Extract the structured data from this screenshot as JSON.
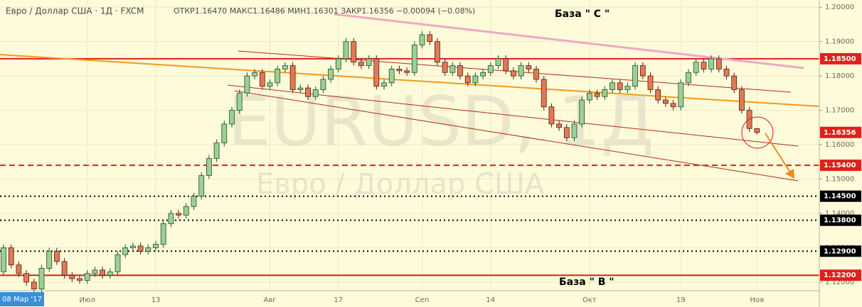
{
  "chart_data": {
    "type": "candlestick",
    "header_symbol": "Евро / Доллар США · 1Д · FXCM",
    "header_stats": "ОТКР1.16470 МАКС1.16486 МИН1.16301 ЗАКР1.16356 −0.00094 (−0.08%)",
    "watermark": "EURUSD, 1Д",
    "watermark_sub": "Евро / Доллар США",
    "annotations": [
      "База \" С \"",
      "База \" В \""
    ],
    "crosshair_date": "08 Мар '17",
    "categories": [
      null,
      null,
      null,
      null,
      null,
      null,
      null,
      null,
      null,
      null,
      null,
      "Июл",
      null,
      null,
      null,
      null,
      null,
      null,
      null,
      null,
      "13",
      null,
      null,
      null,
      null,
      null,
      null,
      null,
      null,
      null,
      null,
      null,
      null,
      null,
      null,
      "Авг",
      null,
      null,
      null,
      null,
      null,
      null,
      null,
      null,
      "17",
      null,
      null,
      null,
      null,
      null,
      null,
      null,
      null,
      null,
      null,
      "Сеп",
      null,
      null,
      null,
      null,
      null,
      null,
      null,
      null,
      "14",
      null,
      null,
      null,
      null,
      null,
      null,
      null,
      null,
      null,
      null,
      null,
      null,
      "Окт",
      null,
      null,
      null,
      null,
      null,
      null,
      null,
      null,
      null,
      null,
      null,
      "19",
      null,
      null,
      null,
      null,
      null,
      null,
      null,
      null,
      null,
      "Ноя"
    ],
    "open": [
      1.123,
      1.13,
      1.125,
      1.1225,
      1.12,
      1.118,
      1.124,
      1.129,
      1.126,
      1.122,
      1.121,
      1.1205,
      1.1225,
      1.1235,
      1.122,
      1.123,
      1.128,
      1.13,
      1.1305,
      1.129,
      1.13,
      1.131,
      1.137,
      1.14,
      1.1395,
      1.142,
      1.145,
      1.151,
      1.156,
      1.1605,
      1.166,
      1.17,
      1.175,
      1.18,
      1.181,
      1.177,
      1.178,
      1.182,
      1.183,
      1.176,
      1.1765,
      1.174,
      1.176,
      1.179,
      1.182,
      1.185,
      1.19,
      1.184,
      1.183,
      1.185,
      1.177,
      1.178,
      1.182,
      1.1815,
      1.181,
      1.189,
      1.192,
      1.19,
      1.184,
      1.181,
      1.183,
      1.18,
      1.178,
      1.18,
      1.181,
      1.183,
      1.185,
      1.1815,
      1.18,
      1.183,
      1.182,
      1.179,
      1.171,
      1.166,
      1.165,
      1.162,
      1.166,
      1.173,
      1.175,
      1.174,
      1.176,
      1.178,
      1.176,
      1.177,
      1.183,
      1.18,
      1.176,
      1.173,
      1.172,
      1.171,
      1.178,
      1.181,
      1.184,
      1.182,
      1.185,
      1.182,
      1.18,
      1.176,
      1.17,
      1.1647
    ],
    "high": [
      1.131,
      1.131,
      1.126,
      1.1235,
      1.121,
      1.125,
      1.13,
      1.13,
      1.127,
      1.123,
      1.122,
      1.1235,
      1.1245,
      1.1245,
      1.124,
      1.129,
      1.131,
      1.1315,
      1.1315,
      1.131,
      1.132,
      1.138,
      1.141,
      1.141,
      1.143,
      1.146,
      1.152,
      1.157,
      1.1615,
      1.167,
      1.171,
      1.176,
      1.181,
      1.182,
      1.182,
      1.179,
      1.183,
      1.184,
      1.184,
      1.1775,
      1.1775,
      1.177,
      1.18,
      1.183,
      1.186,
      1.191,
      1.191,
      1.185,
      1.186,
      1.186,
      1.179,
      1.183,
      1.183,
      1.1825,
      1.19,
      1.193,
      1.193,
      1.191,
      1.185,
      1.184,
      1.184,
      1.181,
      1.181,
      1.182,
      1.184,
      1.186,
      1.186,
      1.1825,
      1.184,
      1.184,
      1.183,
      1.18,
      1.172,
      1.167,
      1.166,
      1.167,
      1.174,
      1.176,
      1.176,
      1.177,
      1.179,
      1.179,
      1.178,
      1.184,
      1.184,
      1.181,
      1.177,
      1.174,
      1.173,
      1.179,
      1.182,
      1.185,
      1.185,
      1.186,
      1.186,
      1.183,
      1.181,
      1.177,
      1.171,
      1.16486
    ],
    "low": [
      1.122,
      1.124,
      1.1215,
      1.119,
      1.117,
      1.117,
      1.123,
      1.125,
      1.121,
      1.12,
      1.1195,
      1.1195,
      1.1215,
      1.121,
      1.121,
      1.122,
      1.127,
      1.129,
      1.128,
      1.128,
      1.129,
      1.13,
      1.136,
      1.1385,
      1.1385,
      1.141,
      1.144,
      1.15,
      1.155,
      1.1595,
      1.165,
      1.169,
      1.174,
      1.179,
      1.176,
      1.176,
      1.177,
      1.181,
      1.175,
      1.175,
      1.173,
      1.173,
      1.175,
      1.178,
      1.181,
      1.184,
      1.183,
      1.182,
      1.182,
      1.176,
      1.176,
      1.177,
      1.1805,
      1.18,
      1.18,
      1.188,
      1.189,
      1.183,
      1.18,
      1.18,
      1.179,
      1.177,
      1.177,
      1.179,
      1.18,
      1.182,
      1.1805,
      1.179,
      1.179,
      1.181,
      1.178,
      1.17,
      1.165,
      1.164,
      1.161,
      1.161,
      1.165,
      1.172,
      1.173,
      1.173,
      1.175,
      1.175,
      1.175,
      1.176,
      1.179,
      1.175,
      1.172,
      1.171,
      1.17,
      1.17,
      1.177,
      1.18,
      1.181,
      1.181,
      1.181,
      1.179,
      1.175,
      1.169,
      1.1637,
      1.16301
    ],
    "close": [
      1.13,
      1.125,
      1.1225,
      1.12,
      1.118,
      1.124,
      1.129,
      1.126,
      1.122,
      1.121,
      1.1205,
      1.1225,
      1.1235,
      1.122,
      1.123,
      1.128,
      1.13,
      1.1305,
      1.129,
      1.13,
      1.131,
      1.137,
      1.14,
      1.1395,
      1.142,
      1.145,
      1.151,
      1.156,
      1.1605,
      1.166,
      1.17,
      1.175,
      1.18,
      1.181,
      1.177,
      1.178,
      1.182,
      1.183,
      1.176,
      1.1765,
      1.174,
      1.176,
      1.179,
      1.182,
      1.185,
      1.19,
      1.184,
      1.183,
      1.185,
      1.177,
      1.178,
      1.182,
      1.1815,
      1.181,
      1.189,
      1.192,
      1.19,
      1.184,
      1.181,
      1.183,
      1.18,
      1.178,
      1.18,
      1.181,
      1.183,
      1.185,
      1.1815,
      1.18,
      1.183,
      1.182,
      1.179,
      1.171,
      1.166,
      1.165,
      1.162,
      1.166,
      1.173,
      1.175,
      1.174,
      1.176,
      1.178,
      1.176,
      1.177,
      1.183,
      1.18,
      1.176,
      1.173,
      1.172,
      1.171,
      1.178,
      1.181,
      1.184,
      1.182,
      1.185,
      1.182,
      1.18,
      1.176,
      1.17,
      1.1647,
      1.16356
    ],
    "up_color": "#9bd092",
    "down_color": "#e07a55",
    "ylim": [
      1.1175,
      1.2021
    ],
    "yticks": [
      {
        "value": 1.2,
        "label": "1.20000"
      },
      {
        "value": 1.19,
        "label": "1.19000"
      },
      {
        "value": 1.18,
        "label": "1.18000"
      },
      {
        "value": 1.17,
        "label": "1.17000"
      },
      {
        "value": 1.16,
        "label": "1.16000"
      },
      {
        "value": 1.15,
        "label": "1.15000"
      },
      {
        "value": 1.14,
        "label": "1.14000"
      },
      {
        "value": 1.13,
        "label": "1.13000"
      },
      {
        "value": 1.12,
        "label": "1.12000"
      }
    ],
    "grid": true,
    "levels": [
      {
        "value": 1.185,
        "label": "1.18500",
        "color": "#e0201b",
        "style": "solid"
      },
      {
        "value": 1.16356,
        "label": "1.16356",
        "color": "#e0201b",
        "style": "none"
      },
      {
        "value": 1.154,
        "label": "1.15400",
        "color": "#e0201b",
        "style": "dashed"
      },
      {
        "value": 1.145,
        "label": "1.14500",
        "color": "#000000",
        "style": "dotted"
      },
      {
        "value": 1.138,
        "label": "1.13800",
        "color": "#000000",
        "style": "dotted"
      },
      {
        "value": 1.129,
        "label": "1.12900",
        "color": "#000000",
        "style": "dotted"
      },
      {
        "value": 1.122,
        "label": "1.12200",
        "color": "#e0201b",
        "style": "solid"
      }
    ]
  }
}
